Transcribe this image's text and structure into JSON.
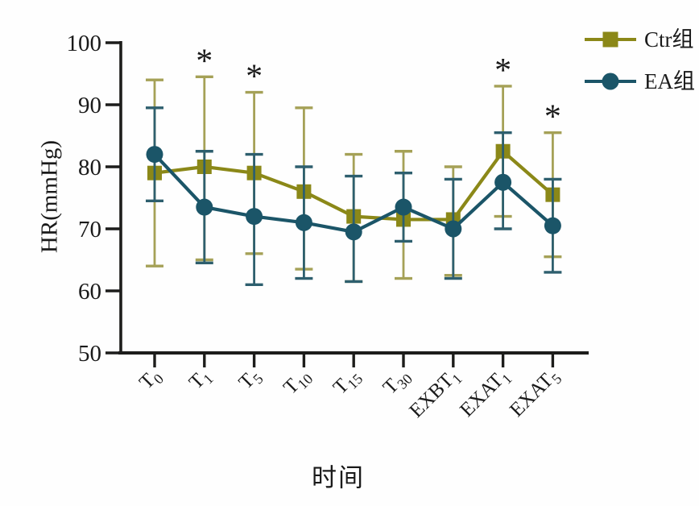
{
  "chart_data": {
    "type": "line",
    "title": "",
    "xlabel": "时间",
    "ylabel": "HR(mmHg)",
    "ylim": [
      50,
      100
    ],
    "yticks": [
      100,
      90,
      80,
      70,
      60,
      50
    ],
    "grid": false,
    "legend_position": "top-right",
    "error_bars": true,
    "annotation_symbol": "*",
    "categories": [
      {
        "text": "T0",
        "base": "T",
        "sub": "0"
      },
      {
        "text": "T1",
        "base": "T",
        "sub": "1"
      },
      {
        "text": "T5",
        "base": "T",
        "sub": "5"
      },
      {
        "text": "T10",
        "base": "T",
        "sub": "10"
      },
      {
        "text": "T15",
        "base": "T",
        "sub": "15"
      },
      {
        "text": "T30",
        "base": "T",
        "sub": "30"
      },
      {
        "text": "EXBT1",
        "base": "EXBT",
        "sub": "1"
      },
      {
        "text": "EXAT1",
        "base": "EXAT",
        "sub": "1"
      },
      {
        "text": "EXAT5",
        "base": "EXAT",
        "sub": "5"
      }
    ],
    "series": [
      {
        "name": "Ctr组",
        "marker": "square",
        "color": "#8b8818",
        "error_color": "#a5a157",
        "values": [
          79,
          80,
          79,
          76,
          72,
          71.5,
          71.5,
          82.5,
          75.5
        ],
        "upper": [
          94,
          94.5,
          92,
          89.5,
          82,
          82.5,
          80,
          93,
          85.5
        ],
        "lower": [
          64,
          65,
          66,
          63.5,
          61.5,
          62,
          62.5,
          72,
          65.5
        ],
        "significant": [
          false,
          true,
          true,
          false,
          false,
          false,
          false,
          true,
          true
        ]
      },
      {
        "name": "EA组",
        "marker": "circle",
        "color": "#1b5568",
        "error_color": "#2e5f6e",
        "values": [
          82,
          73.5,
          72,
          71,
          69.5,
          73.5,
          70,
          77.5,
          70.5
        ],
        "upper": [
          89.5,
          82.5,
          82,
          80,
          78.5,
          79,
          78,
          85.5,
          78
        ],
        "lower": [
          74.5,
          64.5,
          61,
          62,
          61.5,
          68,
          62,
          70,
          63
        ],
        "significant": [
          false,
          false,
          false,
          false,
          false,
          false,
          false,
          false,
          false
        ]
      }
    ],
    "axis_color": "#1d1d1b"
  }
}
